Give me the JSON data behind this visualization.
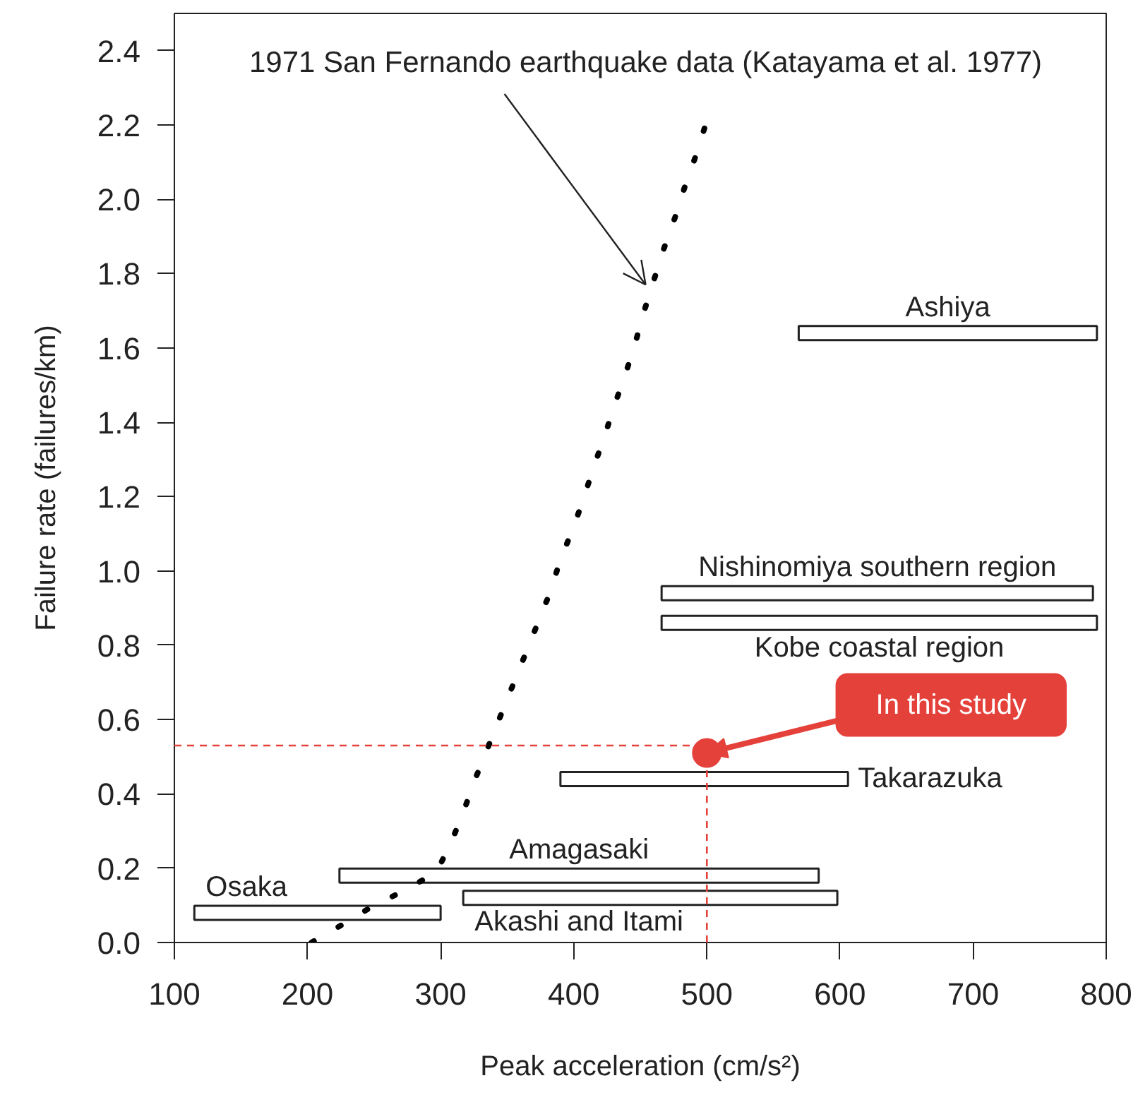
{
  "chart_data": {
    "type": "bar",
    "orientation": "horizontal",
    "xlabel": "Peak acceleration (cm/s²)",
    "ylabel": "Failure rate (failures/km)",
    "xlim": [
      100,
      800
    ],
    "ylim": [
      0,
      2.5
    ],
    "xticks": [
      100,
      200,
      300,
      400,
      500,
      600,
      700,
      800
    ],
    "yticks": [
      {
        "value": 0,
        "label": "0.0"
      },
      0.2,
      0.4,
      0.6,
      0.8,
      {
        "value": 1,
        "label": "1.0"
      },
      1.2,
      1.4,
      1.6,
      1.8,
      {
        "value": 2,
        "label": "2.0"
      },
      2.2,
      2.4
    ],
    "grid": false,
    "annotations": [
      {
        "text": "1971 San Fernando earthquake data (Katayama et al. 1977)",
        "x": 454,
        "y": 1.77
      },
      {
        "text": "In this study",
        "x": 500,
        "y": 0.51
      }
    ],
    "ref_lines": [
      {
        "axis": "y",
        "value": 0.53,
        "color": "#e5413b",
        "line_style": "dashed"
      },
      {
        "axis": "x",
        "value": 500,
        "color": "#e5413b",
        "line_style": "dashed"
      }
    ],
    "series": [
      {
        "name": "Osaka",
        "x": [
          0.08
        ],
        "base": [
          115
        ],
        "values": [
          185
        ]
      },
      {
        "name": "Akashi and Itami",
        "x": [
          0.12
        ],
        "base": [
          317
        ],
        "values": [
          281
        ]
      },
      {
        "name": "Amagasaki",
        "x": [
          0.18
        ],
        "base": [
          224
        ],
        "values": [
          360
        ]
      },
      {
        "name": "Takarazuka",
        "x": [
          0.44
        ],
        "base": [
          390
        ],
        "values": [
          216
        ]
      },
      {
        "name": "Kobe coastal region",
        "x": [
          0.86
        ],
        "base": [
          466
        ],
        "values": [
          327
        ]
      },
      {
        "name": "Nishinomiya southern region",
        "x": [
          0.94
        ],
        "base": [
          466
        ],
        "values": [
          324
        ]
      },
      {
        "name": "Ashiya",
        "x": [
          1.64
        ],
        "base": [
          569
        ],
        "values": [
          224
        ]
      },
      {
        "type": "line",
        "color": "#000000",
        "line_style": "dotted",
        "x": [
          0.0,
          0.05,
          0.1,
          0.14,
          0.19,
          0.27,
          0.35,
          0.44,
          0.52,
          0.61,
          0.69,
          0.77,
          0.94,
          1.03,
          1.11,
          1.19,
          1.28,
          1.36,
          1.44,
          1.52,
          1.61,
          1.7,
          1.78,
          1.87,
          1.95,
          2.04,
          2.12,
          2.2
        ],
        "values": [
          203,
          227,
          250,
          273,
          297,
          308,
          317,
          326,
          335,
          345,
          354,
          363,
          382,
          390,
          399,
          407,
          415,
          423,
          430,
          438,
          446,
          453,
          460,
          468,
          476,
          484,
          492,
          499
        ]
      },
      {
        "type": "scatter",
        "color": "#e5413b",
        "marker": "circle",
        "x": [
          0.51
        ],
        "values": [
          500
        ]
      }
    ]
  }
}
